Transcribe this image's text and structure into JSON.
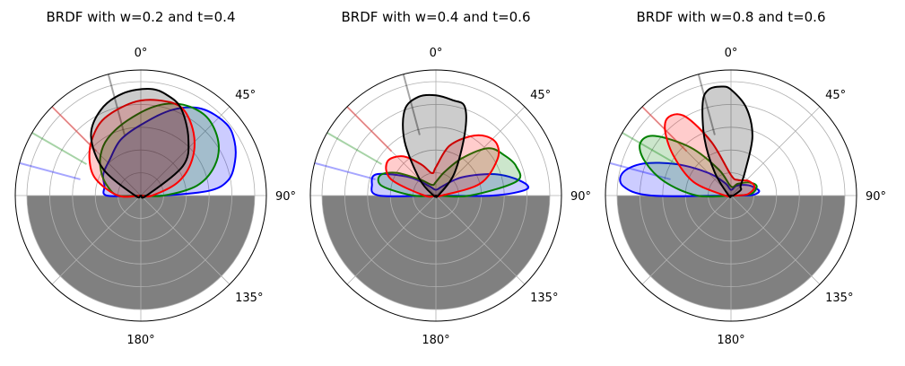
{
  "figure": {
    "background": "#ffffff"
  },
  "chart_data": [
    {
      "type": "polar-area",
      "title": "BRDF with w=0.2 and t=0.4",
      "theta_zero": "top",
      "theta_direction": "clockwise",
      "theta_ticks": [
        0,
        45,
        90,
        135,
        180
      ],
      "theta_tick_labels": [
        "0$^\\circ$",
        "45$^\\circ$",
        "90$^\\circ$",
        "135$^\\circ$",
        "180$^\\circ$"
      ],
      "r_range": [
        0,
        1
      ],
      "r_grid": [
        0.2,
        0.4,
        0.6,
        0.8,
        1.0
      ],
      "grid": true,
      "lower_half_fill": "#808080",
      "series": [
        {
          "color": "#0000ff",
          "incident_angle_deg": -75,
          "lobe_points": [
            [
              -90,
              0.3
            ],
            [
              -75,
              0.33
            ],
            [
              -60,
              0.38
            ],
            [
              -40,
              0.42
            ],
            [
              -20,
              0.52
            ],
            [
              0,
              0.62
            ],
            [
              20,
              0.8
            ],
            [
              35,
              0.93
            ],
            [
              50,
              0.98
            ],
            [
              60,
              0.95
            ],
            [
              70,
              0.88
            ],
            [
              80,
              0.78
            ],
            [
              86,
              0.6
            ],
            [
              90,
              0.2
            ]
          ]
        },
        {
          "color": "#008000",
          "incident_angle_deg": -60,
          "lobe_points": [
            [
              -90,
              0.2
            ],
            [
              -75,
              0.3
            ],
            [
              -60,
              0.4
            ],
            [
              -45,
              0.5
            ],
            [
              -30,
              0.58
            ],
            [
              -10,
              0.67
            ],
            [
              10,
              0.8
            ],
            [
              25,
              0.88
            ],
            [
              40,
              0.9
            ],
            [
              55,
              0.83
            ],
            [
              68,
              0.7
            ],
            [
              80,
              0.5
            ],
            [
              90,
              0.2
            ]
          ]
        },
        {
          "color": "#ff0000",
          "incident_angle_deg": -45,
          "lobe_points": [
            [
              -90,
              0.2
            ],
            [
              -70,
              0.42
            ],
            [
              -55,
              0.55
            ],
            [
              -40,
              0.66
            ],
            [
              -25,
              0.75
            ],
            [
              -5,
              0.82
            ],
            [
              10,
              0.85
            ],
            [
              25,
              0.85
            ],
            [
              40,
              0.72
            ],
            [
              55,
              0.55
            ],
            [
              70,
              0.35
            ],
            [
              90,
              0.1
            ]
          ]
        },
        {
          "color": "#000000",
          "incident_angle_deg": -15,
          "lobe_points": [
            [
              -90,
              0.05
            ],
            [
              -55,
              0.4
            ],
            [
              -40,
              0.68
            ],
            [
              -25,
              0.83
            ],
            [
              -10,
              0.91
            ],
            [
              5,
              0.94
            ],
            [
              15,
              0.91
            ],
            [
              25,
              0.84
            ],
            [
              40,
              0.65
            ],
            [
              55,
              0.45
            ],
            [
              90,
              0.05
            ]
          ]
        }
      ]
    },
    {
      "type": "polar-area",
      "title": "BRDF with w=0.4 and t=0.6",
      "theta_zero": "top",
      "theta_direction": "clockwise",
      "theta_ticks": [
        0,
        45,
        90,
        135,
        180
      ],
      "theta_tick_labels": [
        "0$^\\circ$",
        "45$^\\circ$",
        "90$^\\circ$",
        "135$^\\circ$",
        "180$^\\circ$"
      ],
      "r_range": [
        0,
        1
      ],
      "r_grid": [
        0.2,
        0.4,
        0.6,
        0.8,
        1.0
      ],
      "grid": true,
      "lower_half_fill": "#808080",
      "series": [
        {
          "color": "#0000ff",
          "incident_angle_deg": -75,
          "lobe_points": [
            [
              -90,
              0.5
            ],
            [
              -80,
              0.57
            ],
            [
              -70,
              0.55
            ],
            [
              -55,
              0.28
            ],
            [
              -35,
              0.1
            ],
            [
              0,
              0.05
            ],
            [
              35,
              0.1
            ],
            [
              55,
              0.28
            ],
            [
              70,
              0.55
            ],
            [
              80,
              0.75
            ],
            [
              86,
              0.8
            ],
            [
              90,
              0.5
            ]
          ]
        },
        {
          "color": "#008000",
          "incident_angle_deg": -60,
          "lobe_points": [
            [
              -90,
              0.2
            ],
            [
              -80,
              0.48
            ],
            [
              -70,
              0.52
            ],
            [
              -60,
              0.4
            ],
            [
              -45,
              0.2
            ],
            [
              -20,
              0.1
            ],
            [
              0,
              0.12
            ],
            [
              20,
              0.22
            ],
            [
              35,
              0.4
            ],
            [
              48,
              0.62
            ],
            [
              60,
              0.7
            ],
            [
              70,
              0.75
            ],
            [
              80,
              0.72
            ],
            [
              90,
              0.3
            ]
          ]
        },
        {
          "color": "#ff0000",
          "incident_angle_deg": -45,
          "lobe_points": [
            [
              -90,
              0.1
            ],
            [
              -70,
              0.42
            ],
            [
              -55,
              0.52
            ],
            [
              -40,
              0.45
            ],
            [
              -25,
              0.3
            ],
            [
              -10,
              0.2
            ],
            [
              0,
              0.25
            ],
            [
              15,
              0.45
            ],
            [
              30,
              0.6
            ],
            [
              40,
              0.68
            ],
            [
              50,
              0.7
            ],
            [
              60,
              0.62
            ],
            [
              75,
              0.4
            ],
            [
              90,
              0.05
            ]
          ]
        },
        {
          "color": "#000000",
          "incident_angle_deg": -15,
          "lobe_points": [
            [
              -90,
              0.02
            ],
            [
              -45,
              0.2
            ],
            [
              -30,
              0.55
            ],
            [
              -20,
              0.8
            ],
            [
              -10,
              0.88
            ],
            [
              0,
              0.88
            ],
            [
              10,
              0.85
            ],
            [
              18,
              0.82
            ],
            [
              25,
              0.6
            ],
            [
              40,
              0.25
            ],
            [
              90,
              0.02
            ]
          ]
        }
      ]
    },
    {
      "type": "polar-area",
      "title": "BRDF with w=0.8 and t=0.6",
      "theta_zero": "top",
      "theta_direction": "clockwise",
      "theta_ticks": [
        0,
        45,
        90,
        135,
        180
      ],
      "theta_tick_labels": [
        "0$^\\circ$",
        "45$^\\circ$",
        "90$^\\circ$",
        "135$^\\circ$",
        "180$^\\circ$"
      ],
      "r_range": [
        0,
        1
      ],
      "r_grid": [
        0.2,
        0.4,
        0.6,
        0.8,
        1.0
      ],
      "grid": true,
      "lower_half_fill": "#808080",
      "series": [
        {
          "color": "#0000ff",
          "incident_angle_deg": -75,
          "lobe_points": [
            [
              -90,
              0.7
            ],
            [
              -85,
              0.95
            ],
            [
              -78,
              0.97
            ],
            [
              -70,
              0.82
            ],
            [
              -60,
              0.55
            ],
            [
              -45,
              0.28
            ],
            [
              -25,
              0.12
            ],
            [
              0,
              0.05
            ],
            [
              30,
              0.1
            ],
            [
              60,
              0.18
            ],
            [
              80,
              0.25
            ],
            [
              88,
              0.2
            ],
            [
              90,
              0.08
            ]
          ]
        },
        {
          "color": "#008000",
          "incident_angle_deg": -60,
          "lobe_points": [
            [
              -90,
              0.3
            ],
            [
              -78,
              0.6
            ],
            [
              -68,
              0.82
            ],
            [
              -60,
              0.92
            ],
            [
              -52,
              0.85
            ],
            [
              -40,
              0.55
            ],
            [
              -25,
              0.25
            ],
            [
              0,
              0.08
            ],
            [
              30,
              0.12
            ],
            [
              55,
              0.2
            ],
            [
              70,
              0.24
            ],
            [
              85,
              0.18
            ],
            [
              90,
              0.05
            ]
          ]
        },
        {
          "color": "#ff0000",
          "incident_angle_deg": -45,
          "lobe_points": [
            [
              -90,
              0.05
            ],
            [
              -70,
              0.35
            ],
            [
              -55,
              0.62
            ],
            [
              -45,
              0.82
            ],
            [
              -38,
              0.88
            ],
            [
              -30,
              0.8
            ],
            [
              -20,
              0.5
            ],
            [
              0,
              0.18
            ],
            [
              25,
              0.15
            ],
            [
              50,
              0.2
            ],
            [
              70,
              0.22
            ],
            [
              85,
              0.15
            ],
            [
              90,
              0.05
            ]
          ]
        },
        {
          "color": "#000000",
          "incident_angle_deg": -15,
          "lobe_points": [
            [
              -90,
              0.02
            ],
            [
              -35,
              0.25
            ],
            [
              -25,
              0.55
            ],
            [
              -17,
              0.85
            ],
            [
              -12,
              0.95
            ],
            [
              -5,
              0.96
            ],
            [
              0,
              0.93
            ],
            [
              10,
              0.78
            ],
            [
              20,
              0.55
            ],
            [
              30,
              0.25
            ],
            [
              45,
              0.12
            ],
            [
              60,
              0.1
            ],
            [
              90,
              0.02
            ]
          ]
        }
      ]
    }
  ]
}
